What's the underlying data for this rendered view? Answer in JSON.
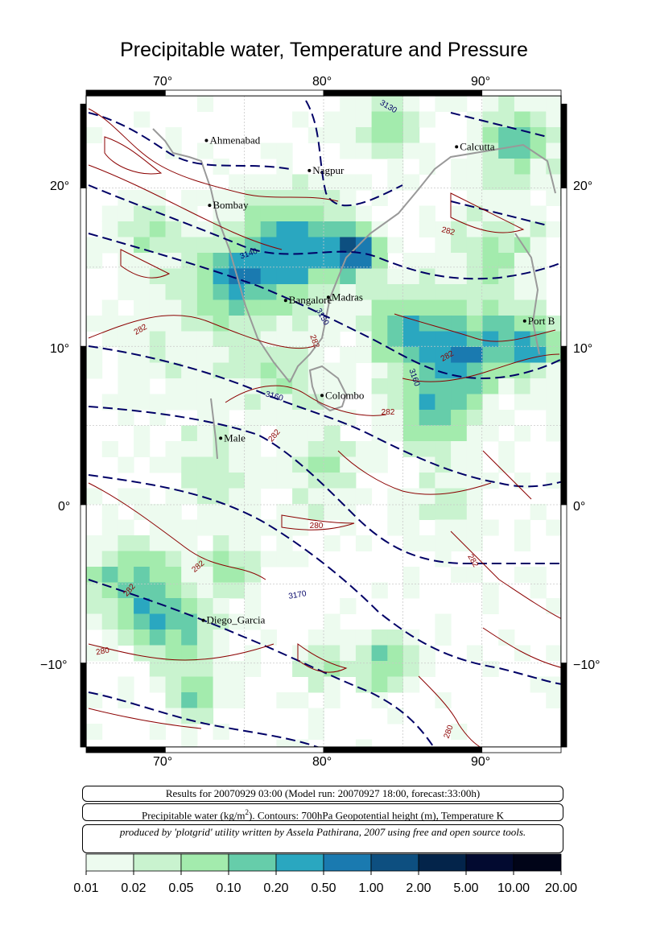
{
  "title": "Precipitable water, Temperature and Pressure",
  "axes": {
    "x_ticks": [
      "70°",
      "80°",
      "90°"
    ],
    "y_ticks": [
      "20°",
      "10°",
      "0°",
      "−10°"
    ]
  },
  "cities": [
    {
      "name": "Ahmenabad",
      "lon": 72.6,
      "lat": 23.0
    },
    {
      "name": "Nagpur",
      "lon": 79.1,
      "lat": 21.1
    },
    {
      "name": "Calcutta",
      "lon": 88.4,
      "lat": 22.6
    },
    {
      "name": "Bombay",
      "lon": 72.8,
      "lat": 18.9
    },
    {
      "name": "Madras",
      "lon": 80.3,
      "lat": 13.1
    },
    {
      "name": "Bangalore",
      "lon": 77.6,
      "lat": 12.9
    },
    {
      "name": "Port B",
      "lon": 92.7,
      "lat": 11.6
    },
    {
      "name": "Colombo",
      "lon": 79.9,
      "lat": 6.9
    },
    {
      "name": "Male",
      "lon": 73.5,
      "lat": 4.2
    },
    {
      "name": "Diego_Garcia",
      "lon": 72.4,
      "lat": -7.3
    }
  ],
  "contour_labels": {
    "height": [
      "3130",
      "3140",
      "3150",
      "3160",
      "3160",
      "3170"
    ],
    "temperature": [
      "282",
      "282",
      "282",
      "282",
      "282",
      "282",
      "280",
      "282",
      "282",
      "282",
      "280",
      "280"
    ]
  },
  "info": {
    "line1": "Results for 20070929 03:00 (Model run: 20070927 18:00, forecast:33:00h)",
    "line2_pre": "Precipitable water (kg/m",
    "line2_sup": "2",
    "line2_post": ").  Contours: 700hPa Geopotential height (m), Temperature K",
    "line3": "produced by 'plotgrid' utility written by Assela Pathirana, 2007 using free and open source tools."
  },
  "colorbar": {
    "ticks": [
      "0.01",
      "0.02",
      "0.05",
      "0.10",
      "0.20",
      "0.50",
      "1.00",
      "2.00",
      "5.00",
      "10.00",
      "20.00"
    ],
    "colors": [
      "#edfbef",
      "#c9f3cf",
      "#a3ebad",
      "#66cdaa",
      "#2aa7c0",
      "#1a7ab0",
      "#0d4f80",
      "#03244a",
      "#020a30",
      "#010418"
    ]
  },
  "colors": {
    "height_contour": "#000066",
    "temperature_contour": "#8b0000",
    "coast": "#999999"
  }
}
